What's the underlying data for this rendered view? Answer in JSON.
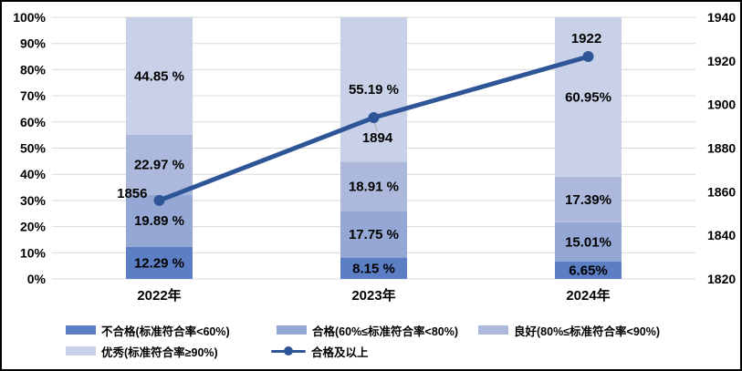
{
  "chart_data": {
    "type": "bar",
    "subtype": "stacked-percent-bars-with-line-overlay",
    "title": "",
    "categories": [
      "2022年",
      "2023年",
      "2024年"
    ],
    "bar_series": [
      {
        "name": "不合格(标准符合率<60%)",
        "color": "#5B7EC4",
        "values": [
          12.29,
          8.15,
          6.65
        ],
        "labels": [
          "12.29 %",
          "8.15 %",
          "6.65%"
        ]
      },
      {
        "name": "合格(60%≤标准符合率<80%)",
        "color": "#95A7D5",
        "values": [
          19.89,
          17.75,
          15.01
        ],
        "labels": [
          "19.89 %",
          "17.75 %",
          "15.01%"
        ]
      },
      {
        "name": "良好(80%≤标准符合率<90%)",
        "color": "#ACB9DD",
        "values": [
          22.97,
          18.91,
          17.39
        ],
        "labels": [
          "22.97 %",
          "18.91 %",
          "17.39%"
        ]
      },
      {
        "name": "优秀(标准符合率≥90%)",
        "color": "#C9D1E8",
        "values": [
          44.85,
          55.19,
          60.95
        ],
        "labels": [
          "44.85 %",
          "55.19 %",
          "60.95%"
        ]
      }
    ],
    "line_series": {
      "name": "合格及以上",
      "color": "#2E5597",
      "values": [
        1856,
        1894,
        1922
      ],
      "labels": [
        "1856",
        "1894",
        "1922"
      ]
    },
    "left_axis": {
      "ticks": [
        "0%",
        "10%",
        "20%",
        "30%",
        "40%",
        "50%",
        "60%",
        "70%",
        "80%",
        "90%",
        "100%"
      ],
      "range": [
        0,
        100
      ]
    },
    "right_axis": {
      "ticks": [
        "1820",
        "1840",
        "1860",
        "1880",
        "1900",
        "1920",
        "1940"
      ],
      "range": [
        1820,
        1940
      ]
    },
    "grid": true,
    "grid_color": "#D9D9D9",
    "leader_line_color": "#A6A6A6",
    "legend_position": "bottom"
  }
}
